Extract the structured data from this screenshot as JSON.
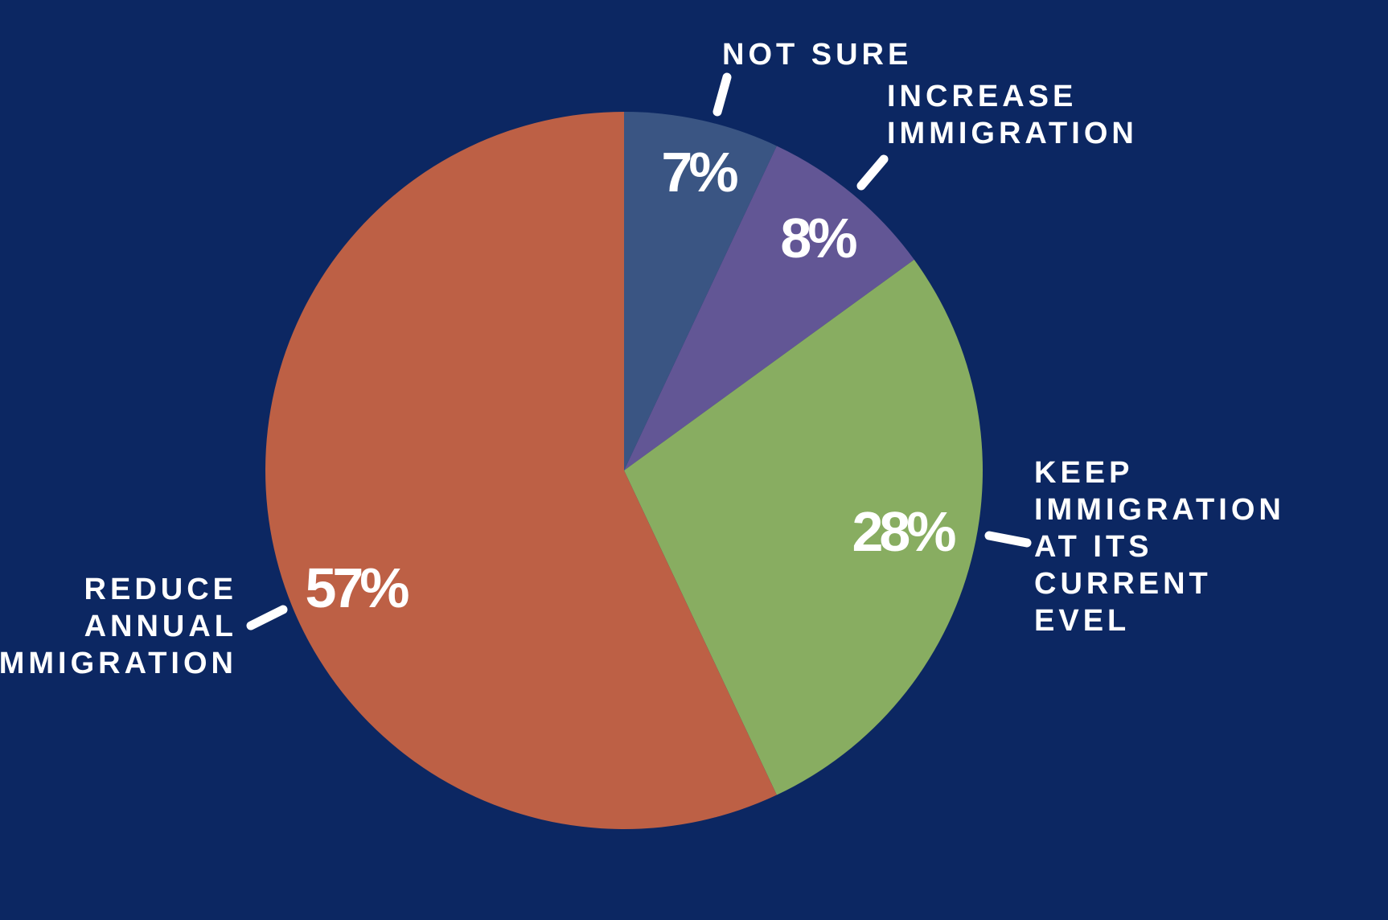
{
  "chart_data": {
    "type": "pie",
    "slices": [
      {
        "label": [
          "NOT SURE"
        ],
        "value": 7,
        "value_label": "7%",
        "color": "#3a5583"
      },
      {
        "label": [
          "INCREASE",
          "IMMIGRATION"
        ],
        "value": 8,
        "value_label": "8%",
        "color": "#625695"
      },
      {
        "label": [
          "KEEP",
          "IMMIGRATION",
          "AT ITS",
          "CURRENT",
          "EVEL"
        ],
        "value": 28,
        "value_label": "28%",
        "color": "#88ad61"
      },
      {
        "label": [
          "REDUCE",
          "ANNUAL",
          "IMMIGRATION"
        ],
        "value": 57,
        "value_label": "57%",
        "color": "#bd6045"
      }
    ],
    "start_angle": "12 o'clock",
    "direction": "clockwise",
    "background": "#0c2762",
    "legend": "none"
  }
}
